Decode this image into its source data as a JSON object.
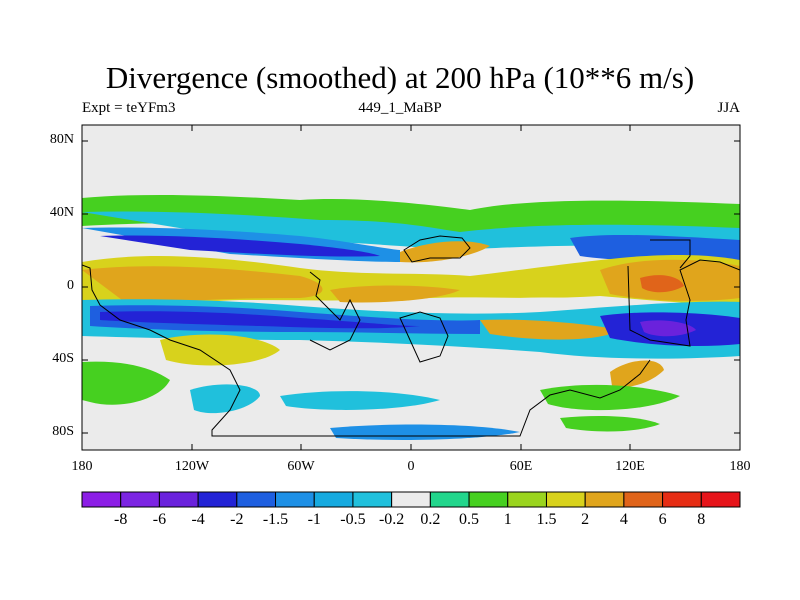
{
  "title": "Divergence (smoothed) at 200 hPa (10**6 m/s)",
  "subtitle_left": "Expt = teYFm3",
  "subtitle_center": "449_1_MaBP",
  "subtitle_right": "JJA",
  "lat_labels": [
    "80N",
    "40N",
    "0",
    "40S",
    "80S"
  ],
  "lon_labels": [
    "180",
    "120W",
    "60W",
    "0",
    "60E",
    "120E",
    "180"
  ],
  "colorbar": {
    "colors": [
      "#8c1ee6",
      "#7c25e3",
      "#6a22dc",
      "#2323d6",
      "#1e5fe0",
      "#1e90e6",
      "#16aae0",
      "#20c0dc",
      "#ebebeb",
      "#22d68c",
      "#46d020",
      "#9ad41e",
      "#d8d21c",
      "#e0a51c",
      "#e0641a",
      "#e62d14",
      "#e6141a"
    ],
    "labels": [
      "-8",
      "-6",
      "-4",
      "-2",
      "-1.5",
      "-1",
      "-0.5",
      "-0.2",
      "0.2",
      "0.5",
      "1",
      "1.5",
      "2",
      "4",
      "6",
      "8"
    ]
  }
}
